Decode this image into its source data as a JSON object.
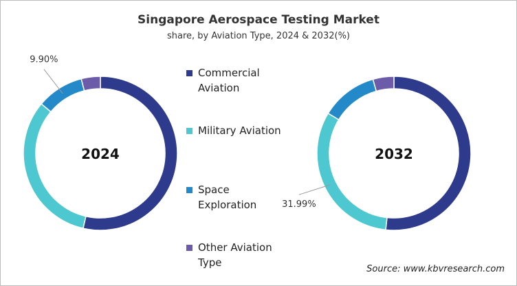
{
  "title": "Singapore Aerospace Testing Market",
  "subtitle": "share, by Aviation Type, 2024 & 2032(%)",
  "source": "Source: www.kbvresearch.com",
  "chart_data": [
    {
      "type": "donut",
      "title": "2024",
      "categories": [
        "Commercial Aviation",
        "Military Aviation",
        "Space Exploration",
        "Other Aviation Type"
      ],
      "values": [
        53.6,
        32.5,
        9.9,
        4.0
      ],
      "value_labels": [
        null,
        null,
        "9.90%",
        null
      ],
      "colors": [
        "#2e3a8c",
        "#4ec8d0",
        "#2389c9",
        "#6b5ba8"
      ]
    },
    {
      "type": "donut",
      "title": "2032",
      "categories": [
        "Commercial Aviation",
        "Military Aviation",
        "Space Exploration",
        "Other Aviation Type"
      ],
      "values": [
        51.7,
        31.99,
        11.9,
        4.4
      ],
      "value_labels": [
        null,
        "31.99%",
        null,
        null
      ],
      "colors": [
        "#2e3a8c",
        "#4ec8d0",
        "#2389c9",
        "#6b5ba8"
      ]
    }
  ]
}
